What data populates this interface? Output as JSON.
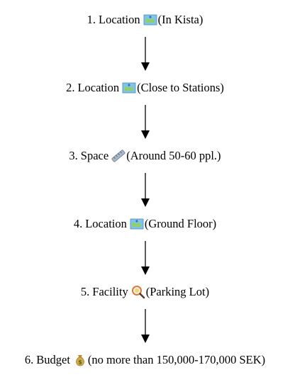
{
  "diagram": {
    "steps": [
      {
        "number": "1.",
        "label": "Location",
        "icon": "map-icon",
        "detail": "(In Kista)"
      },
      {
        "number": "2.",
        "label": "Location",
        "icon": "map-icon",
        "detail": "(Close to Stations)"
      },
      {
        "number": "3.",
        "label": "Space",
        "icon": "ruler-icon",
        "detail": "(Around 50-60 ppl.)"
      },
      {
        "number": "4.",
        "label": "Location",
        "icon": "map-icon",
        "detail": "(Ground Floor)"
      },
      {
        "number": "5.",
        "label": "Facility",
        "icon": "magnifier-icon",
        "detail": "(Parking Lot)"
      },
      {
        "number": "6.",
        "label": "Budget",
        "icon": "money-bag-icon",
        "detail": "(no more than 150,000-170,000 SEK)"
      }
    ],
    "colors": {
      "text": "#000000",
      "arrow": "#000000",
      "map_water": "#7fc4e8",
      "map_land": "#8fd06a",
      "map_pin": "#2b6fd6",
      "ruler": "#a9b8c8",
      "magnifier_rim": "#e07a2e",
      "money_bag": "#d9a64a"
    }
  }
}
